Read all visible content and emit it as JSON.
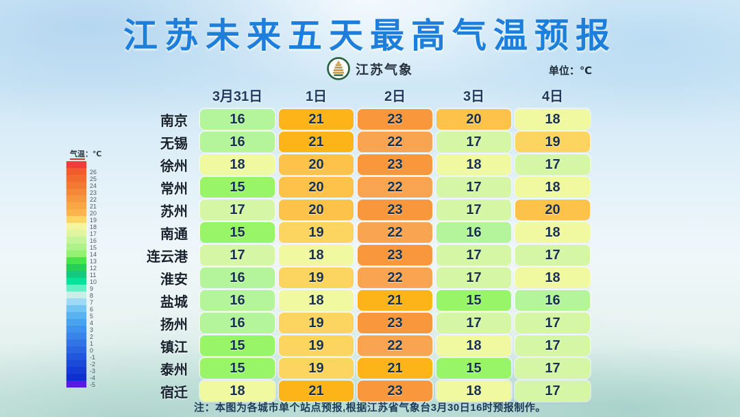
{
  "header": {
    "title": "江苏未来五天最高气温预报",
    "logo_text": "江苏气象",
    "unit_label": "单位：℃"
  },
  "note": "注：本图为各城市单个站点预报,根据江苏省气象台3月30日16时预报制作。",
  "chart_data": {
    "type": "heatmap",
    "title": "江苏未来五天最高气温预报",
    "unit": "℃",
    "columns": [
      "3月31日",
      "1日",
      "2日",
      "3日",
      "4日"
    ],
    "rows": [
      "南京",
      "无锡",
      "徐州",
      "常州",
      "苏州",
      "南通",
      "连云港",
      "淮安",
      "盐城",
      "扬州",
      "镇江",
      "泰州",
      "宿迁"
    ],
    "values": [
      [
        16,
        21,
        23,
        20,
        18
      ],
      [
        16,
        21,
        22,
        17,
        19
      ],
      [
        18,
        20,
        23,
        18,
        17
      ],
      [
        15,
        20,
        22,
        17,
        18
      ],
      [
        17,
        20,
        23,
        17,
        20
      ],
      [
        15,
        19,
        22,
        16,
        18
      ],
      [
        17,
        18,
        23,
        17,
        17
      ],
      [
        16,
        19,
        22,
        17,
        18
      ],
      [
        16,
        18,
        21,
        15,
        16
      ],
      [
        16,
        19,
        23,
        17,
        17
      ],
      [
        15,
        19,
        22,
        18,
        17
      ],
      [
        15,
        19,
        21,
        15,
        17
      ],
      [
        18,
        21,
        23,
        18,
        17
      ]
    ],
    "value_colors": {
      "15": "#98f567",
      "16": "#b4f59c",
      "17": "#d5f7a5",
      "18": "#f0f8a0",
      "19": "#fbd55f",
      "20": "#fcc24a",
      "21": "#fcb418",
      "22": "#f9a450",
      "23": "#f8973c"
    },
    "legend": {
      "title_main": "气温",
      "title_unit": "：℃",
      "bands": [
        {
          "label": "",
          "color": "#f03c3c"
        },
        {
          "label": "26",
          "color": "#f05c2c"
        },
        {
          "label": "25",
          "color": "#f16a2e"
        },
        {
          "label": "24",
          "color": "#f37832"
        },
        {
          "label": "23",
          "color": "#f58838"
        },
        {
          "label": "22",
          "color": "#f79740"
        },
        {
          "label": "21",
          "color": "#f9a646"
        },
        {
          "label": "20",
          "color": "#fbb54c"
        },
        {
          "label": "19",
          "color": "#fbd566"
        },
        {
          "label": "18",
          "color": "#f4f59e"
        },
        {
          "label": "17",
          "color": "#e0f5a0"
        },
        {
          "label": "16",
          "color": "#c6f49c"
        },
        {
          "label": "15",
          "color": "#adf389"
        },
        {
          "label": "14",
          "color": "#93f272"
        },
        {
          "label": "13",
          "color": "#49e34c"
        },
        {
          "label": "12",
          "color": "#26cf55"
        },
        {
          "label": "11",
          "color": "#13c97b"
        },
        {
          "label": "10",
          "color": "#06e39a"
        },
        {
          "label": "9",
          "color": "#64f0c2"
        },
        {
          "label": "8",
          "color": "#c9f0e8"
        },
        {
          "label": "7",
          "color": "#9ed9f5"
        },
        {
          "label": "6",
          "color": "#74c5f2"
        },
        {
          "label": "5",
          "color": "#58b3f0"
        },
        {
          "label": "4",
          "color": "#4aa3ee"
        },
        {
          "label": "3",
          "color": "#4093ec"
        },
        {
          "label": "2",
          "color": "#3884e8"
        },
        {
          "label": "1",
          "color": "#3175e4"
        },
        {
          "label": "0",
          "color": "#2a66e0"
        },
        {
          "label": "-1",
          "color": "#2257dc"
        },
        {
          "label": "-2",
          "color": "#1b49d8"
        },
        {
          "label": "-3",
          "color": "#153cd4"
        },
        {
          "label": "-4",
          "color": "#0f2fd0"
        },
        {
          "label": "-5",
          "color": "#5a1ae6"
        }
      ]
    }
  }
}
